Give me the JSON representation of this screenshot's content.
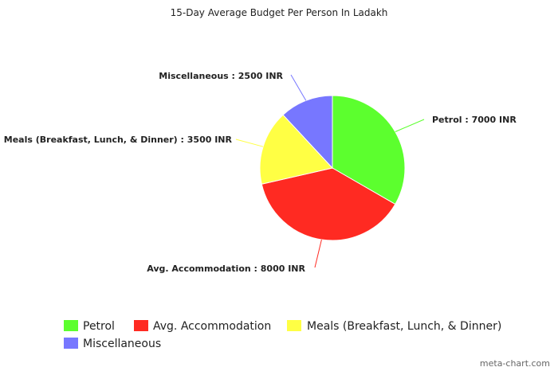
{
  "chart_data": {
    "type": "pie",
    "title": "15-Day Average Budget Per Person In Ladakh",
    "categories": [
      "Petrol",
      "Avg. Accommodation",
      "Meals (Breakfast, Lunch, & Dinner)",
      "Miscellaneous"
    ],
    "values": [
      7000,
      8000,
      3500,
      2500
    ],
    "unit": "INR",
    "data_labels": [
      "Petrol : 7000 INR",
      "Avg. Accommodation : 8000 INR",
      "Meals (Breakfast, Lunch, & Dinner) : 3500 INR",
      "Miscellaneous : 2500 INR"
    ],
    "colors": [
      "#5cff2e",
      "#ff2a22",
      "#ffff44",
      "#7777ff"
    ],
    "legend_placement": "bottom"
  },
  "watermark": "meta-chart.com"
}
